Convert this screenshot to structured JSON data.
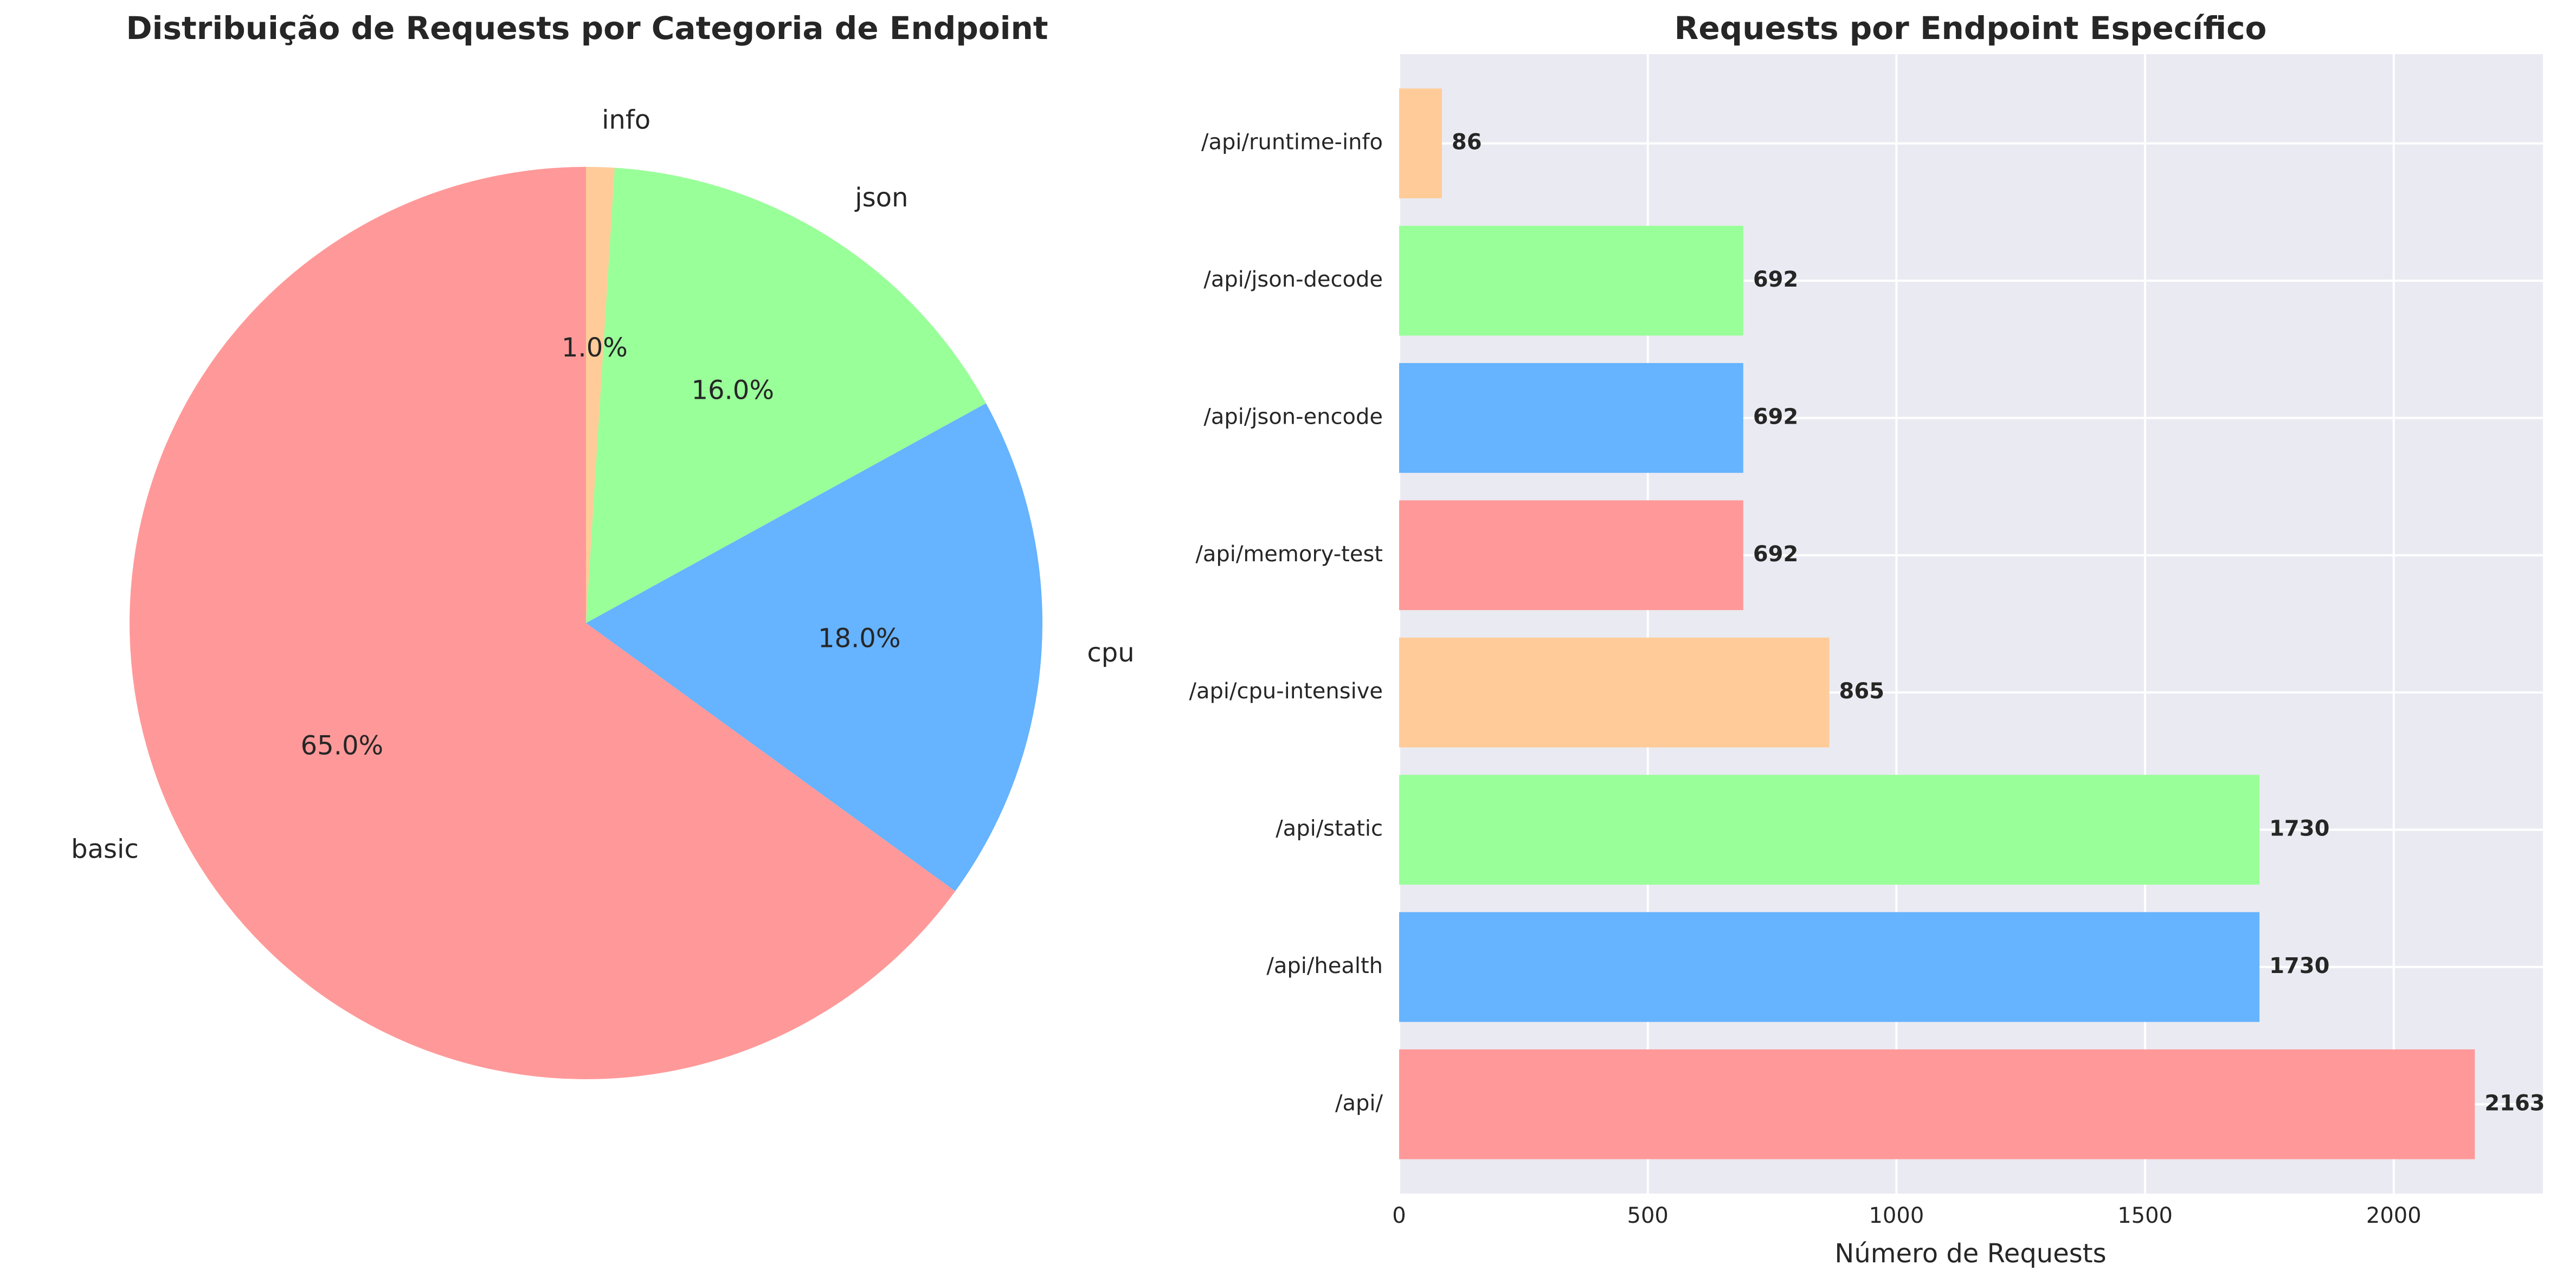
{
  "chart_data": [
    {
      "type": "pie",
      "title": "Distribuição de Requests por Categoria de Endpoint",
      "start_angle_deg": 90,
      "direction": "counterclockwise",
      "slices": [
        {
          "label": "basic",
          "value": 65.0,
          "pct_label": "65.0%",
          "color": "#ff9999"
        },
        {
          "label": "cpu",
          "value": 18.0,
          "pct_label": "18.0%",
          "color": "#66b3ff"
        },
        {
          "label": "json",
          "value": 16.0,
          "pct_label": "16.0%",
          "color": "#99ff99"
        },
        {
          "label": "info",
          "value": 1.0,
          "pct_label": "1.0%",
          "color": "#ffcc99"
        }
      ]
    },
    {
      "type": "bar",
      "orientation": "horizontal",
      "title": "Requests por Endpoint Específico",
      "xlabel": "Número de Requests",
      "ylabel": "",
      "xlim": [
        0,
        2300
      ],
      "xticks": [
        0,
        500,
        1000,
        1500,
        2000
      ],
      "grid": true,
      "background": "#eaeaf2",
      "categories": [
        "/api/",
        "/api/health",
        "/api/static",
        "/api/cpu-intensive",
        "/api/memory-test",
        "/api/json-encode",
        "/api/json-decode",
        "/api/runtime-info"
      ],
      "values": [
        2163,
        1730,
        1730,
        865,
        692,
        692,
        692,
        86
      ],
      "value_labels": [
        "2163",
        "1730",
        "1730",
        "865",
        "692",
        "692",
        "692",
        "86"
      ],
      "colors": [
        "#ff9999",
        "#66b3ff",
        "#99ff99",
        "#ffcc99",
        "#ff9999",
        "#66b3ff",
        "#99ff99",
        "#ffcc99"
      ]
    }
  ]
}
